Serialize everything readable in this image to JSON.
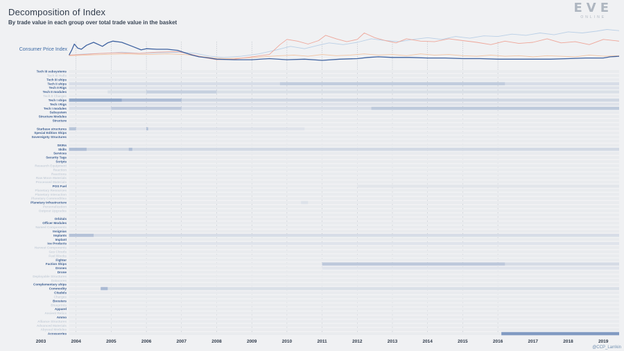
{
  "title": "Decomposition of Index",
  "subtitle": "By trade value in each group over total trade value in the basket",
  "logo": {
    "main": "EVE",
    "sub": "ONLINE"
  },
  "credit": "@CCP_Larrikin",
  "colors": {
    "cpi": "#3e62a0",
    "bar": "#5d7fb3",
    "peach": "#f3c3a0",
    "salmon": "#eea598",
    "lightblue": "#b9cfe6",
    "gridline": "#9aa3ad"
  },
  "chart_data": {
    "type": "heatmap",
    "cpi_label": "Consumer Price Index",
    "xlim": [
      2003.0,
      2019.45
    ],
    "years": [
      2003,
      2004,
      2005,
      2006,
      2007,
      2008,
      2009,
      2010,
      2011,
      2012,
      2013,
      2014,
      2015,
      2016,
      2017,
      2018,
      2019
    ],
    "gridline_years": [
      2004,
      2005,
      2006,
      2007,
      2008,
      2009,
      2010,
      2011,
      2012,
      2013,
      2014,
      2015,
      2016
    ],
    "data_start": 2003.8,
    "data_end": 2019.45,
    "lines": [
      {
        "key": "cpi",
        "color": "#3e62a0",
        "width": 1.3,
        "x": [
          2003.8,
          2003.88,
          2003.95,
          2004.05,
          2004.15,
          2004.3,
          2004.5,
          2004.75,
          2004.9,
          2005.05,
          2005.3,
          2005.6,
          2005.85,
          2006.0,
          2006.3,
          2006.6,
          2006.9,
          2007.1,
          2007.3,
          2007.5,
          2007.8,
          2008.0,
          2008.5,
          2009.0,
          2009.5,
          2010.0,
          2010.5,
          2011.0,
          2011.5,
          2012.0,
          2012.3,
          2012.6,
          2013.0,
          2013.5,
          2014.0,
          2014.5,
          2015.0,
          2015.5,
          2016.0,
          2016.5,
          2017.0,
          2017.5,
          2018.0,
          2018.5,
          2019.0,
          2019.2,
          2019.45
        ],
        "y": [
          103,
          112,
          122,
          115,
          113,
          120,
          125,
          118,
          124,
          127,
          125,
          118,
          112,
          114,
          113,
          113,
          111,
          107,
          103,
          100,
          98,
          96,
          95,
          95,
          97,
          95,
          96,
          94,
          96,
          97,
          99,
          100,
          99,
          99,
          98,
          98,
          97,
          97,
          96,
          96,
          96,
          96,
          97,
          98,
          98,
          100,
          101
        ]
      },
      {
        "key": "salmon",
        "color": "#eea598",
        "width": 0.9,
        "x": [
          2003.8,
          2004.2,
          2004.7,
          2005.2,
          2005.8,
          2006.3,
          2006.9,
          2007.3,
          2007.7,
          2008.0,
          2008.5,
          2009.0,
          2009.5,
          2009.8,
          2010.0,
          2010.3,
          2010.6,
          2010.9,
          2011.1,
          2011.4,
          2011.7,
          2012.0,
          2012.2,
          2012.5,
          2012.8,
          2013.1,
          2013.4,
          2013.8,
          2014.2,
          2014.6,
          2015.0,
          2015.4,
          2015.8,
          2016.2,
          2016.6,
          2017.0,
          2017.4,
          2017.8,
          2018.2,
          2018.6,
          2019.0,
          2019.45
        ],
        "y": [
          103,
          104,
          106,
          107,
          106,
          108,
          109,
          104,
          98,
          95,
          96,
          100,
          104,
          121,
          130,
          127,
          122,
          128,
          137,
          131,
          126,
          130,
          141,
          133,
          128,
          124,
          131,
          127,
          126,
          131,
          128,
          125,
          121,
          127,
          123,
          125,
          131,
          124,
          126,
          121,
          130,
          127
        ]
      },
      {
        "key": "lightblue",
        "color": "#b9cfe6",
        "width": 0.9,
        "x": [
          2003.8,
          2004.3,
          2004.8,
          2005.3,
          2005.8,
          2006.4,
          2007.0,
          2007.4,
          2007.8,
          2008.2,
          2008.7,
          2009.2,
          2009.7,
          2010.1,
          2010.5,
          2010.9,
          2011.2,
          2011.6,
          2012.0,
          2012.4,
          2012.8,
          2013.2,
          2013.6,
          2014.0,
          2014.4,
          2014.8,
          2015.2,
          2015.6,
          2016.0,
          2016.4,
          2016.8,
          2017.2,
          2017.6,
          2018.0,
          2018.4,
          2018.8,
          2019.1,
          2019.45
        ],
        "y": [
          103,
          105,
          106,
          108,
          106,
          107,
          108,
          106,
          101,
          99,
          101,
          105,
          112,
          118,
          114,
          120,
          124,
          121,
          125,
          131,
          128,
          126,
          130,
          133,
          130,
          135,
          132,
          136,
          135,
          139,
          137,
          141,
          138,
          143,
          141,
          144,
          147,
          145
        ]
      },
      {
        "key": "peach",
        "color": "#f3c3a0",
        "width": 0.9,
        "x": [
          2003.8,
          2004.3,
          2004.8,
          2005.4,
          2006.0,
          2006.6,
          2007.1,
          2007.5,
          2007.9,
          2008.3,
          2008.8,
          2009.3,
          2009.8,
          2010.2,
          2010.6,
          2011.0,
          2011.4,
          2011.8,
          2012.2,
          2012.6,
          2013.0,
          2013.4,
          2013.8,
          2014.2,
          2014.6,
          2015.0,
          2015.4,
          2015.8,
          2016.2,
          2016.6,
          2017.0,
          2017.4,
          2017.8,
          2018.2,
          2018.6,
          2019.0,
          2019.45
        ],
        "y": [
          102,
          103,
          104,
          105,
          104,
          105,
          104,
          101,
          98,
          97,
          98,
          100,
          102,
          103,
          101,
          104,
          102,
          103,
          105,
          103,
          104,
          102,
          105,
          103,
          104,
          102,
          101,
          103,
          101,
          102,
          100,
          102,
          101,
          100,
          103,
          101,
          102
        ]
      }
    ],
    "cpi_ylim": [
      88,
      150
    ],
    "categories": [
      {
        "label": "Tech III subsystems",
        "strong": true,
        "segs": []
      },
      {
        "label": "Tech III Hulls",
        "strong": false,
        "segs": []
      },
      {
        "label": "Tech III ships",
        "strong": true,
        "segs": []
      },
      {
        "label": "Tech II ships",
        "strong": true,
        "segs": [
          [
            2003.8,
            2019.45,
            0.12
          ],
          [
            2009.8,
            2016.2,
            0.18
          ]
        ]
      },
      {
        "label": "Tech II Rigs",
        "strong": true,
        "segs": [
          [
            2003.8,
            2019.45,
            0.07
          ]
        ]
      },
      {
        "label": "Tech II modules",
        "strong": true,
        "segs": [
          [
            2004.9,
            2019.45,
            0.1
          ],
          [
            2006.0,
            2008.0,
            0.16
          ]
        ]
      },
      {
        "label": "Tech II Charges",
        "strong": false,
        "segs": []
      },
      {
        "label": "Tech I ships",
        "strong": true,
        "segs": [
          [
            2003.8,
            2019.45,
            0.18
          ],
          [
            2003.8,
            2005.3,
            0.55
          ],
          [
            2005.3,
            2007.0,
            0.28
          ]
        ]
      },
      {
        "label": "Tech I Rigs",
        "strong": true,
        "segs": [
          [
            2003.8,
            2019.45,
            0.07
          ]
        ]
      },
      {
        "label": "Tech I modules",
        "strong": true,
        "segs": [
          [
            2003.8,
            2012.4,
            0.12
          ],
          [
            2012.4,
            2019.45,
            0.3
          ],
          [
            2005.0,
            2007.0,
            0.2
          ]
        ]
      },
      {
        "label": "Subsystem",
        "strong": true,
        "segs": []
      },
      {
        "label": "Structure Modules",
        "strong": true,
        "segs": []
      },
      {
        "label": "Structure",
        "strong": true,
        "segs": []
      },
      {
        "label": "",
        "strong": false,
        "segs": []
      },
      {
        "label": "Starbase structures",
        "strong": true,
        "segs": [
          [
            2003.8,
            2004.0,
            0.35
          ],
          [
            2004.0,
            2010.5,
            0.07
          ],
          [
            2006.0,
            2006.05,
            0.35
          ]
        ]
      },
      {
        "label": "Special Edition Ships",
        "strong": true,
        "segs": []
      },
      {
        "label": "Sovereignty Structures",
        "strong": true,
        "segs": []
      },
      {
        "label": "",
        "strong": false,
        "segs": []
      },
      {
        "label": "SKINs",
        "strong": true,
        "segs": []
      },
      {
        "label": "Skills",
        "strong": true,
        "segs": [
          [
            2003.8,
            2019.45,
            0.16
          ],
          [
            2003.8,
            2004.3,
            0.3
          ],
          [
            2005.5,
            2005.6,
            0.3
          ]
        ]
      },
      {
        "label": "Services",
        "strong": true,
        "segs": []
      },
      {
        "label": "Security Tags",
        "strong": true,
        "segs": []
      },
      {
        "label": "Scripts",
        "strong": true,
        "segs": []
      },
      {
        "label": "Research Equipment",
        "strong": false,
        "segs": []
      },
      {
        "label": "Reaction",
        "strong": false,
        "segs": []
      },
      {
        "label": "Reactions",
        "strong": false,
        "segs": []
      },
      {
        "label": "Raw Moon Materials",
        "strong": false,
        "segs": []
      },
      {
        "label": "Processed Materials",
        "strong": false,
        "segs": []
      },
      {
        "label": "POS Fuel",
        "strong": true,
        "segs": [
          [
            2012.0,
            2019.45,
            0.05
          ]
        ]
      },
      {
        "label": "Planetary Resources",
        "strong": false,
        "segs": []
      },
      {
        "label": "Planetary Interaction",
        "strong": false,
        "segs": []
      },
      {
        "label": "Planetary Commodities",
        "strong": false,
        "segs": []
      },
      {
        "label": "Planetary Infrastructure",
        "strong": true,
        "segs": [
          [
            2010.4,
            2010.6,
            0.08
          ]
        ]
      },
      {
        "label": "Personalization",
        "strong": false,
        "segs": []
      },
      {
        "label": "Outpost Upgrades",
        "strong": false,
        "segs": []
      },
      {
        "label": "",
        "strong": false,
        "segs": []
      },
      {
        "label": "Orbitals",
        "strong": true,
        "segs": []
      },
      {
        "label": "Officer Modules",
        "strong": true,
        "segs": []
      },
      {
        "label": "Named Components",
        "strong": false,
        "segs": []
      },
      {
        "label": "Insignias",
        "strong": true,
        "segs": []
      },
      {
        "label": "Implants",
        "strong": true,
        "segs": [
          [
            2003.8,
            2019.45,
            0.12
          ],
          [
            2003.8,
            2004.5,
            0.28
          ]
        ]
      },
      {
        "label": "Implant",
        "strong": true,
        "segs": []
      },
      {
        "label": "Ice Products",
        "strong": true,
        "segs": [
          [
            2003.8,
            2019.45,
            0.06
          ]
        ]
      },
      {
        "label": "Harvest Components",
        "strong": false,
        "segs": []
      },
      {
        "label": "Gas Clouds",
        "strong": false,
        "segs": []
      },
      {
        "label": "Fuel Blocks",
        "strong": false,
        "segs": []
      },
      {
        "label": "Fighter",
        "strong": true,
        "segs": []
      },
      {
        "label": "Faction Ships",
        "strong": true,
        "segs": [
          [
            2011.0,
            2019.45,
            0.14
          ],
          [
            2011.0,
            2016.2,
            0.2
          ]
        ]
      },
      {
        "label": "Drones",
        "strong": true,
        "segs": [
          [
            2011.0,
            2019.45,
            0.06
          ]
        ]
      },
      {
        "label": "Drone",
        "strong": true,
        "segs": []
      },
      {
        "label": "Deployable Structures",
        "strong": false,
        "segs": []
      },
      {
        "label": "Datacores",
        "strong": false,
        "segs": []
      },
      {
        "label": "Complementary ships",
        "strong": true,
        "segs": []
      },
      {
        "label": "Commodity",
        "strong": true,
        "segs": [
          [
            2004.7,
            2004.9,
            0.45
          ],
          [
            2004.9,
            2019.45,
            0.1
          ]
        ]
      },
      {
        "label": "Citadels",
        "strong": true,
        "segs": []
      },
      {
        "label": "Charges",
        "strong": false,
        "segs": []
      },
      {
        "label": "Boosters",
        "strong": true,
        "segs": []
      },
      {
        "label": "Blueprints",
        "strong": false,
        "segs": []
      },
      {
        "label": "Apparel",
        "strong": true,
        "segs": []
      },
      {
        "label": "Ancient Relics",
        "strong": false,
        "segs": []
      },
      {
        "label": "Ammo",
        "strong": true,
        "segs": []
      },
      {
        "label": "Alliance Structures",
        "strong": false,
        "segs": []
      },
      {
        "label": "Advanced Materials",
        "strong": false,
        "segs": []
      },
      {
        "label": "Abyssal Modules",
        "strong": false,
        "segs": []
      },
      {
        "label": "Accessories",
        "strong": true,
        "segs": [
          [
            2016.1,
            2019.45,
            0.75
          ]
        ]
      }
    ]
  }
}
